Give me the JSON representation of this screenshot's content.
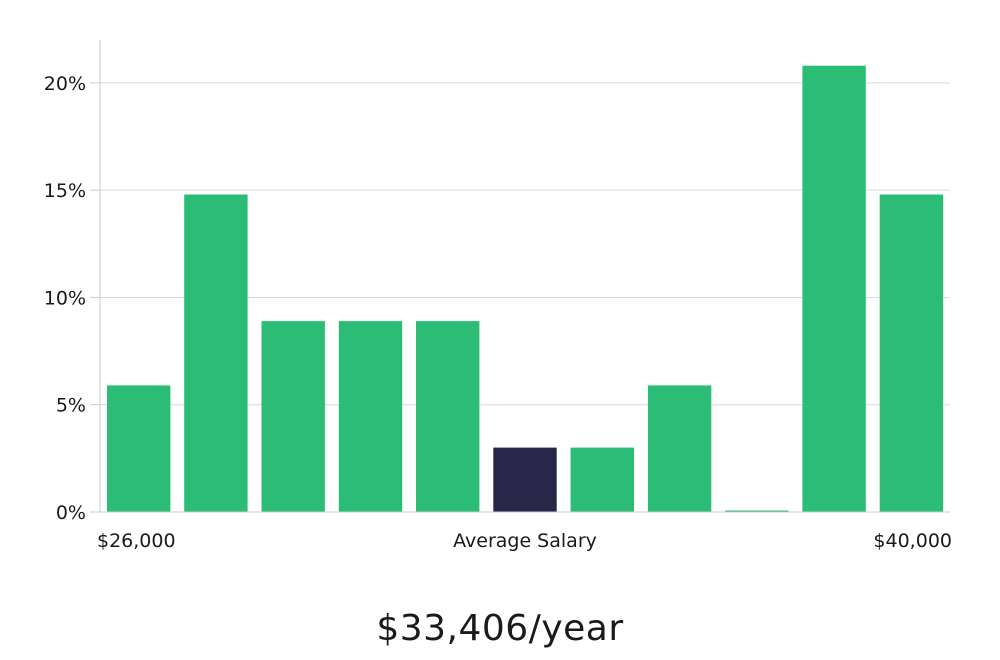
{
  "chart_data": {
    "type": "bar",
    "title": "$33,406/year",
    "xlabel": "Average Salary",
    "x_min_label": "$26,000",
    "x_max_label": "$40,000",
    "ylabel": "",
    "y_ticks": [
      "0%",
      "5%",
      "10%",
      "15%",
      "20%"
    ],
    "y_tick_values": [
      0,
      5,
      10,
      15,
      20
    ],
    "ylim": [
      0,
      22
    ],
    "values": [
      5.9,
      14.8,
      8.9,
      8.9,
      8.9,
      3.0,
      3.0,
      5.9,
      0,
      20.8,
      14.8
    ],
    "highlight_index": 5,
    "grid": true,
    "colors": {
      "bar": "#2bbd76",
      "highlight": "#29264a",
      "grid": "#d9d9d9",
      "axis": "#cccccc"
    }
  }
}
